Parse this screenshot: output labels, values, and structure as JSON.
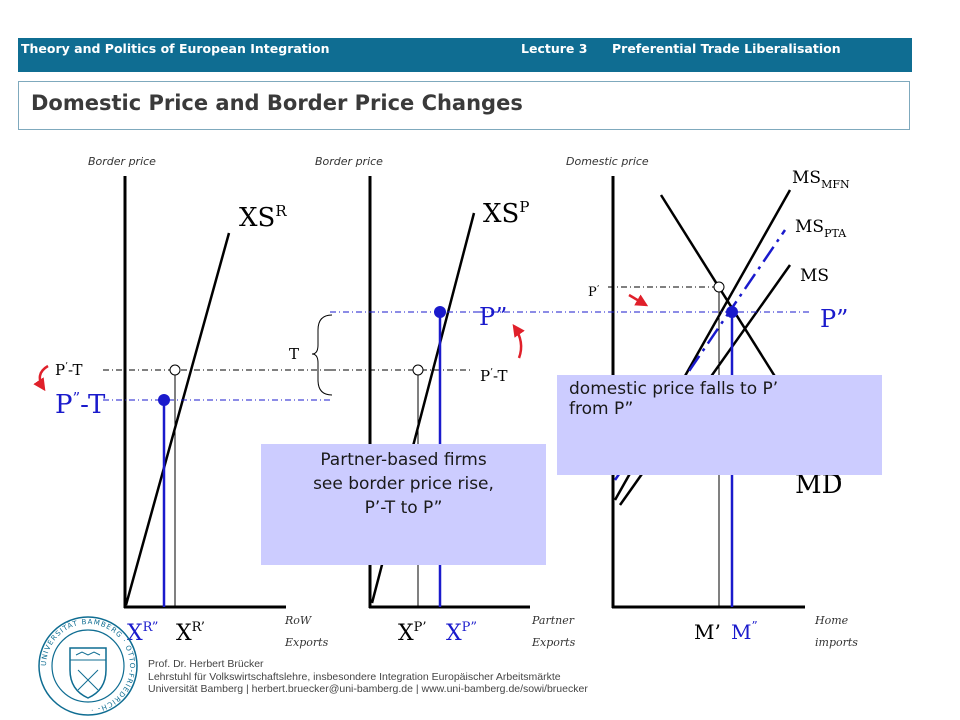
{
  "header": {
    "course": "Theory and Politics of European Integration",
    "lecture": "Lecture 3",
    "topic": "Preferential Trade Liberalisation"
  },
  "title": "Domestic Price and Border Price Changes",
  "panels": {
    "rest_of_world": {
      "y_axis_label": "Border price",
      "curve_label": "XS",
      "curve_sup": "R",
      "x_axis_label_1": "RoW",
      "x_axis_label_2": "Exports",
      "price_label_1_main": "P",
      "price_label_1_sup": "’",
      "price_label_1_tail": "-T",
      "price_label_2_main": "P",
      "price_label_2_sup": "”",
      "price_label_2_tail": "-T",
      "quantity_1_main": "X",
      "quantity_1_sup": "R”",
      "quantity_2_main": "X",
      "quantity_2_sup": "R’"
    },
    "partner": {
      "y_axis_label": "Border price",
      "curve_label": "XS",
      "curve_sup": "P",
      "x_axis_label_1": "Partner",
      "x_axis_label_2": "Exports",
      "tariff_label": "T",
      "price_high": "P”",
      "price_low_main": "P",
      "price_low_sup": "’",
      "price_low_tail": "-T",
      "quantity_1_main": "X",
      "quantity_1_sup": "P’",
      "quantity_2_main": "X",
      "quantity_2_sup": "P”"
    },
    "home": {
      "y_axis_label": "Domestic price",
      "curve_mfn_main": "MS",
      "curve_mfn_sub": "MFN",
      "curve_pta_main": "MS",
      "curve_pta_sub": "PTA",
      "curve_ms": "MS",
      "curve_md": "MD",
      "price_prime_main": "P",
      "price_prime_sup": "’",
      "price_high": "P”",
      "x_axis_label_1": "Home",
      "x_axis_label_2": "imports",
      "quantity_1": "M’",
      "quantity_2": "M",
      "quantity_2_sup": "”"
    }
  },
  "callouts": {
    "partner_firms": [
      "Partner-based firms",
      "see border price rise,",
      "P’-T to P”"
    ],
    "domestic_price": [
      "domestic price falls to P’",
      "from P”"
    ]
  },
  "footer": {
    "name": "Prof. Dr. Herbert Brücker",
    "chair": "Lehrstuhl für Volkswirtschaftslehre, insbesondere Integration Europäischer Arbeitsmärkte",
    "contact": "Universität Bamberg | herbert.bruecker@uni-bamberg.de | www.uni-bamberg.de/sowi/bruecker"
  },
  "seal": {
    "ring_text": "UNIVERSITÄT BAMBERG · OTTO-FRIEDRICH- ·"
  },
  "colors": {
    "header_bg": "#0f6d92",
    "callout_bg": "#ccccff",
    "blue_line": "#1a1acc",
    "arrow_red": "#e0202a"
  }
}
